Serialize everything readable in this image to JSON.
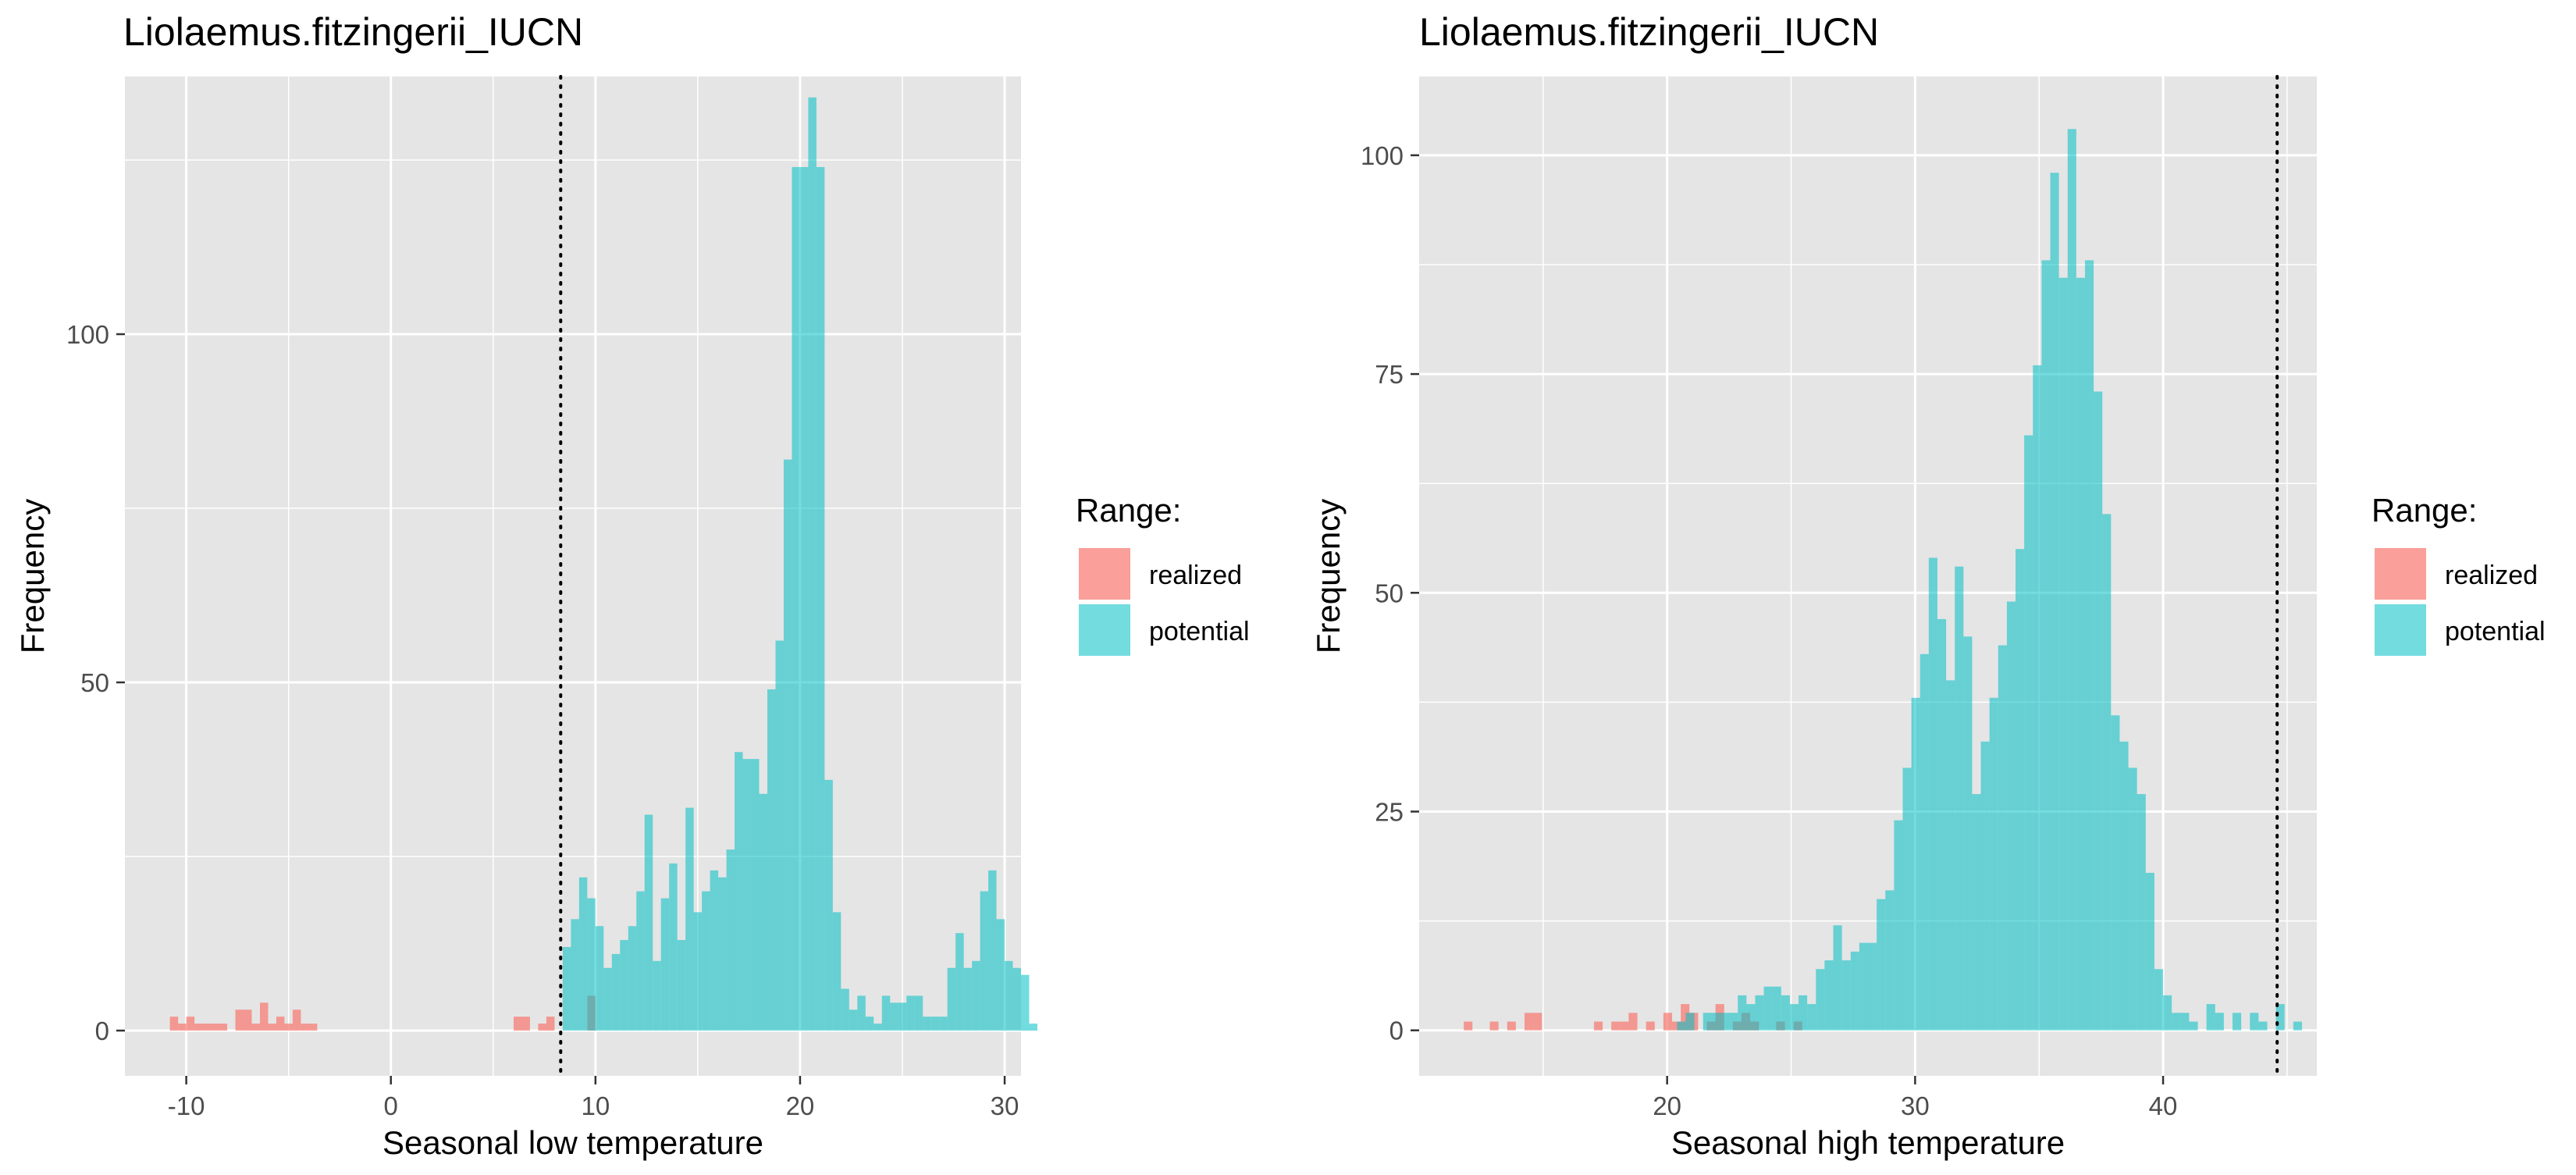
{
  "colors": {
    "realized": "#F8766D",
    "potential": "#00BFC4",
    "panel_background": "#E5E5E5",
    "grid": "#FFFFFF",
    "text": "#000000",
    "tick_text": "#4D4D4D"
  },
  "legend": {
    "title": "Range:",
    "items": [
      {
        "label": "realized",
        "color_key": "realized"
      },
      {
        "label": "potential",
        "color_key": "potential"
      }
    ]
  },
  "chart_data": [
    {
      "type": "bar",
      "title": "Liolaemus.fitzingerii_IUCN",
      "xlabel": "Seasonal low temperature",
      "ylabel": "Frequency",
      "xlim": [
        -13.0,
        30.8
      ],
      "ylim": [
        -6.5,
        137
      ],
      "x_ticks": [
        -10,
        0,
        10,
        20,
        30
      ],
      "x_tick_labels": [
        "-10",
        "0",
        "10",
        "20",
        "30"
      ],
      "y_ticks": [
        0,
        50,
        100
      ],
      "y_tick_labels": [
        "0",
        "50",
        "100"
      ],
      "grid": true,
      "legend_position": "right",
      "bin_width": 0.4,
      "reference_line_x": 8.3,
      "series": [
        {
          "name": "realized",
          "bin_start": -10.8,
          "counts": [
            2,
            1,
            2,
            1,
            1,
            1,
            1,
            0,
            3,
            3,
            1,
            4,
            1,
            2,
            1,
            3,
            1,
            1,
            0,
            0,
            0,
            0,
            0,
            0,
            0,
            0,
            0,
            0,
            0,
            0,
            0,
            0,
            0,
            0,
            0,
            0,
            0,
            0,
            0,
            0,
            0,
            0,
            2,
            2,
            0,
            1,
            2,
            0,
            0,
            0,
            0,
            5
          ]
        },
        {
          "name": "potential",
          "bin_start": 8.4,
          "counts": [
            12,
            16,
            22,
            19,
            15,
            9,
            11,
            13,
            15,
            20,
            31,
            10,
            19,
            24,
            13,
            32,
            17,
            20,
            23,
            22,
            26,
            40,
            39,
            39,
            34,
            49,
            56,
            82,
            124,
            124,
            134,
            124,
            36,
            17,
            6,
            3,
            5,
            2,
            1,
            5,
            4,
            4,
            5,
            5,
            2,
            2,
            2,
            9,
            14,
            9,
            10,
            20,
            23,
            16,
            10,
            9,
            8,
            1
          ]
        }
      ]
    },
    {
      "type": "bar",
      "title": "Liolaemus.fitzingerii_IUCN",
      "xlabel": "Seasonal high temperature",
      "ylabel": "Frequency",
      "xlim": [
        10.0,
        46.2
      ],
      "ylim": [
        -5.2,
        109
      ],
      "x_ticks": [
        20,
        30,
        40
      ],
      "x_tick_labels": [
        "20",
        "30",
        "40"
      ],
      "y_ticks": [
        0,
        25,
        50,
        75,
        100
      ],
      "y_tick_labels": [
        "0",
        "25",
        "50",
        "75",
        "100"
      ],
      "grid": true,
      "legend_position": "right",
      "bin_width": 0.35,
      "reference_line_x": 44.6,
      "series": [
        {
          "name": "realized",
          "bin_start": 11.8,
          "counts": [
            1,
            0,
            0,
            1,
            0,
            1,
            0,
            2,
            2,
            0,
            0,
            0,
            0,
            0,
            0,
            1,
            0,
            1,
            1,
            2,
            0,
            1,
            0,
            2,
            1,
            3,
            2,
            0,
            1,
            3,
            0,
            1,
            2,
            1,
            0,
            0,
            1,
            0,
            1
          ]
        },
        {
          "name": "potential",
          "bin_start": 20.4,
          "counts": [
            1,
            2,
            0,
            2,
            2,
            2,
            2,
            4,
            3,
            4,
            5,
            5,
            4,
            3,
            4,
            3,
            7,
            8,
            12,
            8,
            9,
            10,
            10,
            15,
            16,
            24,
            30,
            38,
            43,
            54,
            47,
            40,
            53,
            45,
            27,
            33,
            38,
            44,
            49,
            55,
            68,
            76,
            88,
            98,
            86,
            103,
            86,
            88,
            73,
            59,
            36,
            33,
            30,
            27,
            18,
            7,
            4,
            2,
            2,
            1,
            0,
            3,
            2,
            0,
            2,
            0,
            2,
            1,
            0,
            3,
            0,
            1
          ]
        }
      ]
    }
  ]
}
